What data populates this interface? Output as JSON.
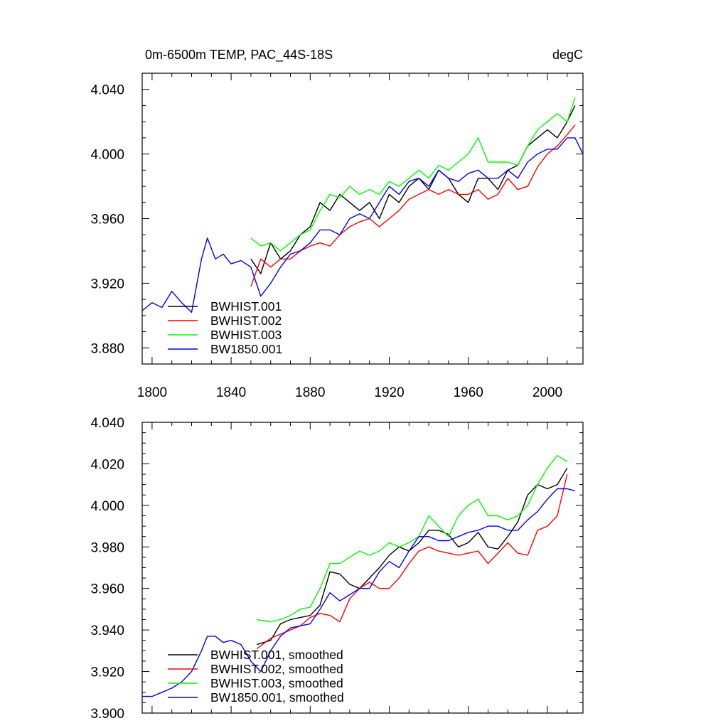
{
  "chart_data": [
    {
      "type": "line",
      "title": "0m-6500m TEMP, PAC_44S-18S",
      "units": "degC",
      "xlim": [
        1795,
        2018
      ],
      "ylim": [
        3.87,
        4.05
      ],
      "x_ticks": [
        1800,
        1840,
        1880,
        1920,
        1960,
        2000
      ],
      "y_ticks": [
        3.88,
        3.92,
        3.96,
        4.0,
        4.04
      ],
      "y_tick_labels": [
        "3.880",
        "3.920",
        "3.960",
        "4.000",
        "4.040"
      ],
      "legend_position": "bottom-left",
      "series": [
        {
          "name": "BWHIST.001",
          "color": "#000000",
          "x": [
            1850,
            1855,
            1860,
            1865,
            1870,
            1875,
            1880,
            1885,
            1890,
            1895,
            1900,
            1905,
            1910,
            1915,
            1920,
            1925,
            1930,
            1935,
            1940,
            1945,
            1950,
            1955,
            1960,
            1965,
            1970,
            1975,
            1980,
            1985,
            1990,
            1995,
            2000,
            2005,
            2010,
            2014
          ],
          "y": [
            3.935,
            3.926,
            3.945,
            3.935,
            3.94,
            3.95,
            3.955,
            3.97,
            3.965,
            3.975,
            3.97,
            3.965,
            3.97,
            3.96,
            3.975,
            3.97,
            3.98,
            3.985,
            3.978,
            3.99,
            3.985,
            3.975,
            3.97,
            3.985,
            3.985,
            3.978,
            3.99,
            3.993,
            4.005,
            4.01,
            4.015,
            4.01,
            4.02,
            4.03
          ]
        },
        {
          "name": "BWHIST.002",
          "color": "#ff0000",
          "x": [
            1850,
            1855,
            1860,
            1865,
            1870,
            1875,
            1880,
            1885,
            1890,
            1895,
            1900,
            1905,
            1910,
            1915,
            1920,
            1925,
            1930,
            1935,
            1940,
            1945,
            1950,
            1955,
            1960,
            1965,
            1970,
            1975,
            1980,
            1985,
            1990,
            1995,
            2000,
            2005,
            2010,
            2014
          ],
          "y": [
            3.918,
            3.935,
            3.93,
            3.935,
            3.935,
            3.94,
            3.943,
            3.945,
            3.943,
            3.95,
            3.955,
            3.958,
            3.96,
            3.955,
            3.96,
            3.965,
            3.972,
            3.975,
            3.978,
            3.975,
            3.978,
            3.975,
            3.975,
            3.978,
            3.972,
            3.975,
            3.985,
            3.978,
            3.98,
            3.992,
            4.0,
            4.005,
            4.012,
            4.018
          ]
        },
        {
          "name": "BWHIST.003",
          "color": "#00ff00",
          "x": [
            1850,
            1855,
            1860,
            1865,
            1870,
            1875,
            1880,
            1885,
            1890,
            1895,
            1900,
            1905,
            1910,
            1915,
            1920,
            1925,
            1930,
            1935,
            1940,
            1945,
            1950,
            1955,
            1960,
            1965,
            1970,
            1975,
            1980,
            1985,
            1990,
            1995,
            2000,
            2005,
            2010,
            2014
          ],
          "y": [
            3.948,
            3.943,
            3.945,
            3.94,
            3.945,
            3.95,
            3.953,
            3.965,
            3.975,
            3.973,
            3.98,
            3.975,
            3.978,
            3.975,
            3.983,
            3.98,
            3.985,
            3.99,
            3.985,
            3.993,
            3.99,
            3.995,
            4.0,
            4.01,
            3.995,
            3.995,
            3.995,
            3.993,
            4.005,
            4.015,
            4.02,
            4.025,
            4.02,
            4.035
          ]
        },
        {
          "name": "BW1850.001",
          "color": "#0000ff",
          "x": [
            1795,
            1800,
            1805,
            1810,
            1815,
            1820,
            1825,
            1828,
            1832,
            1836,
            1840,
            1845,
            1850,
            1855,
            1860,
            1865,
            1870,
            1875,
            1880,
            1885,
            1890,
            1895,
            1900,
            1905,
            1910,
            1915,
            1920,
            1925,
            1930,
            1935,
            1940,
            1945,
            1950,
            1955,
            1960,
            1965,
            1970,
            1975,
            1980,
            1985,
            1990,
            1995,
            2000,
            2005,
            2010,
            2014,
            2018
          ],
          "y": [
            3.903,
            3.908,
            3.905,
            3.915,
            3.908,
            3.902,
            3.935,
            3.948,
            3.935,
            3.938,
            3.932,
            3.934,
            3.93,
            3.912,
            3.92,
            3.93,
            3.938,
            3.94,
            3.945,
            3.953,
            3.953,
            3.95,
            3.96,
            3.963,
            3.96,
            3.97,
            3.98,
            3.975,
            3.983,
            3.985,
            3.98,
            3.99,
            3.985,
            3.983,
            3.988,
            3.99,
            3.985,
            3.985,
            3.99,
            3.985,
            3.995,
            4.0,
            4.003,
            4.003,
            4.01,
            4.01,
            4.0
          ]
        }
      ]
    },
    {
      "type": "line",
      "xlim": [
        1795,
        2018
      ],
      "ylim": [
        3.9,
        4.04
      ],
      "x_ticks": [
        1800,
        1840,
        1880,
        1920,
        1960,
        2000
      ],
      "y_ticks": [
        3.9,
        3.92,
        3.94,
        3.96,
        3.98,
        4.0,
        4.02,
        4.04
      ],
      "y_tick_labels": [
        "3.900",
        "3.920",
        "3.940",
        "3.960",
        "3.980",
        "4.000",
        "4.020",
        "4.040"
      ],
      "legend_position": "bottom-left",
      "series": [
        {
          "name": "BWHIST.001, smoothed",
          "color": "#000000",
          "x": [
            1853,
            1860,
            1865,
            1870,
            1875,
            1880,
            1885,
            1890,
            1895,
            1900,
            1905,
            1910,
            1915,
            1920,
            1925,
            1930,
            1935,
            1940,
            1945,
            1950,
            1955,
            1960,
            1965,
            1970,
            1975,
            1980,
            1985,
            1990,
            1995,
            2000,
            2005,
            2010
          ],
          "y": [
            3.933,
            3.935,
            3.943,
            3.945,
            3.946,
            3.947,
            3.952,
            3.968,
            3.967,
            3.962,
            3.96,
            3.965,
            3.97,
            3.976,
            3.98,
            3.978,
            3.982,
            3.988,
            3.988,
            3.986,
            3.98,
            3.982,
            3.987,
            3.98,
            3.979,
            3.985,
            3.992,
            4.005,
            4.01,
            4.008,
            4.01,
            4.018
          ]
        },
        {
          "name": "BWHIST.002, smoothed",
          "color": "#ff0000",
          "x": [
            1853,
            1860,
            1865,
            1870,
            1875,
            1880,
            1885,
            1890,
            1895,
            1900,
            1905,
            1910,
            1915,
            1920,
            1925,
            1930,
            1935,
            1940,
            1945,
            1950,
            1955,
            1960,
            1965,
            1970,
            1975,
            1980,
            1985,
            1990,
            1995,
            2000,
            2005,
            2010
          ],
          "y": [
            3.931,
            3.936,
            3.938,
            3.94,
            3.942,
            3.946,
            3.948,
            3.947,
            3.944,
            3.955,
            3.96,
            3.963,
            3.96,
            3.96,
            3.965,
            3.972,
            3.978,
            3.98,
            3.978,
            3.977,
            3.976,
            3.977,
            3.978,
            3.972,
            3.977,
            3.982,
            3.977,
            3.976,
            3.988,
            3.99,
            3.995,
            4.015
          ]
        },
        {
          "name": "BWHIST.003, smoothed",
          "color": "#00ff00",
          "x": [
            1853,
            1860,
            1865,
            1870,
            1875,
            1880,
            1885,
            1890,
            1895,
            1900,
            1905,
            1910,
            1915,
            1920,
            1925,
            1930,
            1935,
            1940,
            1945,
            1950,
            1955,
            1960,
            1965,
            1970,
            1975,
            1980,
            1985,
            1990,
            1995,
            2000,
            2005,
            2010
          ],
          "y": [
            3.945,
            3.944,
            3.945,
            3.947,
            3.95,
            3.951,
            3.96,
            3.972,
            3.972,
            3.975,
            3.978,
            3.976,
            3.978,
            3.982,
            3.98,
            3.982,
            3.985,
            3.995,
            3.99,
            3.985,
            3.995,
            4.0,
            4.003,
            3.995,
            3.995,
            3.993,
            3.995,
            4.0,
            4.01,
            4.018,
            4.024,
            4.021
          ]
        },
        {
          "name": "BW1850.001, smoothed",
          "color": "#0000ff",
          "x": [
            1795,
            1800,
            1805,
            1810,
            1815,
            1820,
            1825,
            1828,
            1832,
            1836,
            1840,
            1845,
            1850,
            1855,
            1860,
            1865,
            1870,
            1875,
            1880,
            1885,
            1890,
            1895,
            1900,
            1905,
            1910,
            1915,
            1920,
            1925,
            1930,
            1935,
            1940,
            1945,
            1950,
            1955,
            1960,
            1965,
            1970,
            1975,
            1980,
            1985,
            1990,
            1995,
            2000,
            2005,
            2010,
            2014
          ],
          "y": [
            3.908,
            3.908,
            3.91,
            3.912,
            3.915,
            3.92,
            3.93,
            3.937,
            3.937,
            3.934,
            3.935,
            3.933,
            3.925,
            3.92,
            3.93,
            3.937,
            3.941,
            3.942,
            3.943,
            3.95,
            3.958,
            3.954,
            3.957,
            3.96,
            3.96,
            3.968,
            3.973,
            3.97,
            3.978,
            3.985,
            3.985,
            3.983,
            3.983,
            3.985,
            3.987,
            3.988,
            3.99,
            3.99,
            3.988,
            3.988,
            3.993,
            3.997,
            4.003,
            4.008,
            4.008,
            4.007
          ]
        }
      ]
    }
  ]
}
